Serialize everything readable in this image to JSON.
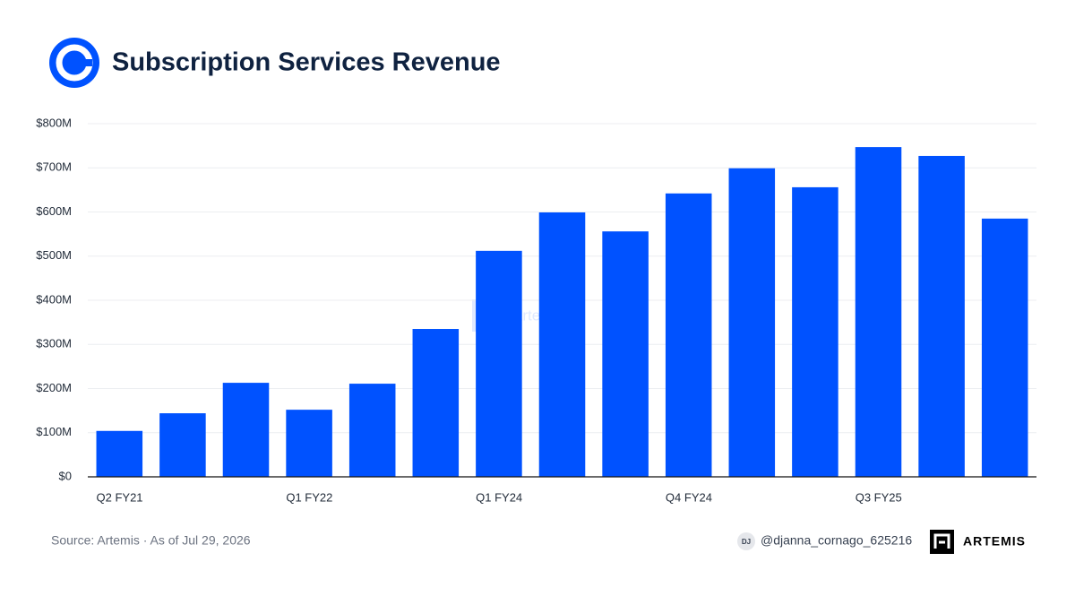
{
  "chart_data": {
    "type": "bar",
    "title": "Subscription Services Revenue",
    "categories": [
      "Q2 FY21",
      null,
      null,
      "Q1 FY22",
      null,
      null,
      "Q1 FY24",
      null,
      null,
      "Q4 FY24",
      null,
      null,
      "Q3 FY25",
      null,
      null
    ],
    "values": [
      104,
      144,
      213,
      152,
      211,
      335,
      512,
      599,
      556,
      642,
      699,
      656,
      747,
      727,
      585
    ],
    "color": "#0052ff",
    "ylim": [
      0,
      800
    ],
    "yticks": [
      {
        "value": 0,
        "label": "$0"
      },
      {
        "value": 100,
        "label": "$100M"
      },
      {
        "value": 200,
        "label": "$200M"
      },
      {
        "value": 300,
        "label": "$300M"
      },
      {
        "value": 400,
        "label": "$400M"
      },
      {
        "value": 500,
        "label": "$500M"
      },
      {
        "value": 600,
        "label": "$600M"
      },
      {
        "value": 700,
        "label": "$700M"
      },
      {
        "value": 800,
        "label": "$800M"
      }
    ],
    "grid": true
  },
  "source": "Source: Artemis · As of Jul 29, 2026",
  "avatar": "DJ",
  "handle": "@djanna_cornago_625216",
  "brand": "ARTEMIS",
  "watermark": "Artemis"
}
